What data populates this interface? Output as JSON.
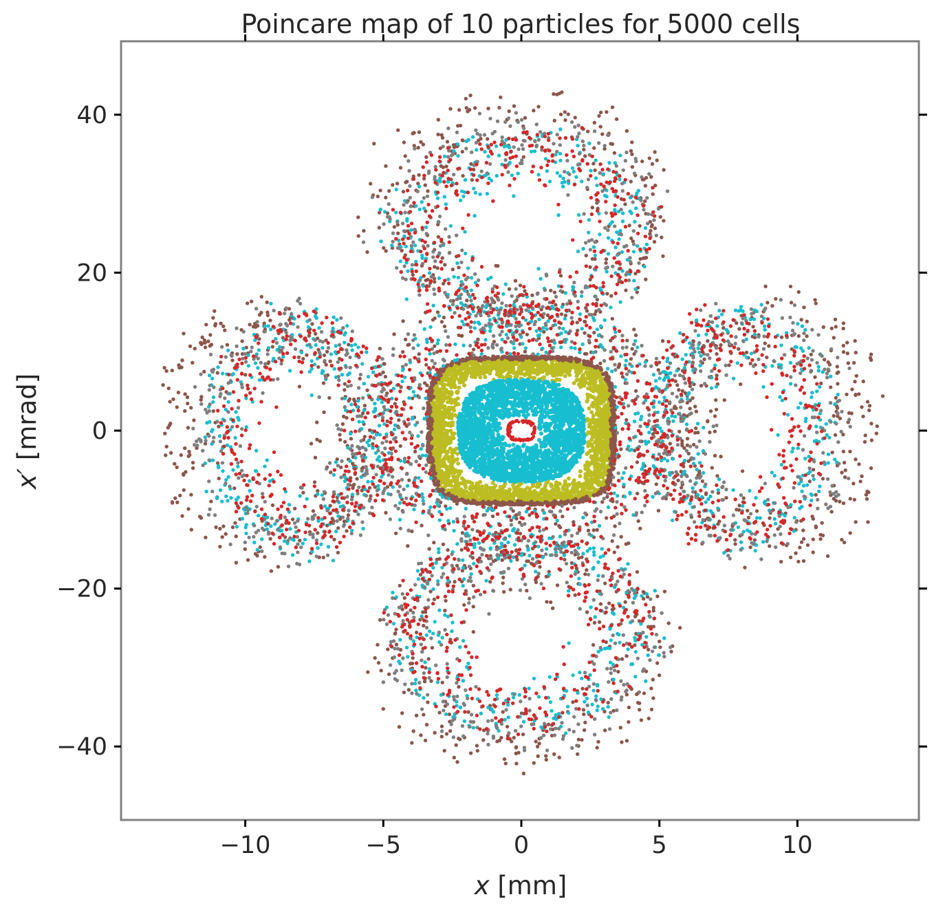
{
  "chart_data": {
    "type": "scatter",
    "title": "Poincare map of 10 particles for 5000 cells",
    "xlabel": "x [mm]",
    "xlabel_var": "x",
    "xlabel_unit": " [mm]",
    "ylabel": "x′ [mrad]",
    "ylabel_var": "x′",
    "ylabel_unit": " [mrad]",
    "xlim": [
      -14.5,
      14.4
    ],
    "ylim": [
      -49.3,
      49.3
    ],
    "xticks": [
      -10,
      -5,
      0,
      5,
      10
    ],
    "xtick_labels": [
      "−10",
      "−5",
      "0",
      "5",
      "10"
    ],
    "yticks": [
      -40,
      -20,
      0,
      20,
      40
    ],
    "ytick_labels": [
      "−40",
      "−20",
      "0",
      "20",
      "40"
    ],
    "grid": false,
    "legend": "none",
    "frame_color": "#808080",
    "tick_color": "#000000",
    "series": [
      {
        "kind": "ring",
        "color": "#bcbd22",
        "note": "stable orbit",
        "x_range": [
          -3.3,
          3.3
        ],
        "y_range": [
          -9.1,
          9.1
        ],
        "inner_x_range": [
          -2.3,
          2.3
        ],
        "inner_y_range": [
          -6.3,
          6.3
        ]
      },
      {
        "kind": "ring",
        "color": "#8c564b",
        "note": "outer edge of stable region",
        "x_range": [
          -3.4,
          3.4
        ],
        "y_range": [
          -9.4,
          9.4
        ],
        "inner_x_range": [
          -3.2,
          3.2
        ],
        "inner_y_range": [
          -8.9,
          8.9
        ]
      },
      {
        "kind": "ring",
        "color": "#17becf",
        "note": "inner stable orbit",
        "x_range": [
          -2.3,
          2.3
        ],
        "y_range": [
          -6.5,
          6.5
        ],
        "inner_x_range": [
          -0.6,
          0.6
        ],
        "inner_y_range": [
          -1.6,
          1.6
        ]
      },
      {
        "kind": "ring",
        "color": "#d62728",
        "note": "small central orbit",
        "x_range": [
          -0.5,
          0.5
        ],
        "y_range": [
          -1.3,
          1.3
        ],
        "inner_x_range": [
          -0.38,
          0.38
        ],
        "inner_y_range": [
          -1.0,
          1.0
        ]
      },
      {
        "kind": "cloud",
        "color": "#8c564b",
        "note": "chaotic four-lobed halo",
        "x_range": [
          -13.2,
          13.1
        ],
        "y_range": [
          -44.8,
          44.8
        ]
      },
      {
        "kind": "cloud",
        "color": "#17becf",
        "note": "chaotic four-lobed halo",
        "x_range": [
          -11.5,
          11.5
        ],
        "y_range": [
          -40,
          40
        ]
      },
      {
        "kind": "cloud",
        "color": "#7f7f7f",
        "note": "chaotic four-lobed halo",
        "x_range": [
          -12,
          12
        ],
        "y_range": [
          -42,
          42
        ]
      },
      {
        "kind": "cloud",
        "color": "#d62728",
        "note": "chaotic four-lobed halo",
        "x_range": [
          -11,
          11
        ],
        "y_range": [
          -40,
          40
        ]
      }
    ]
  }
}
